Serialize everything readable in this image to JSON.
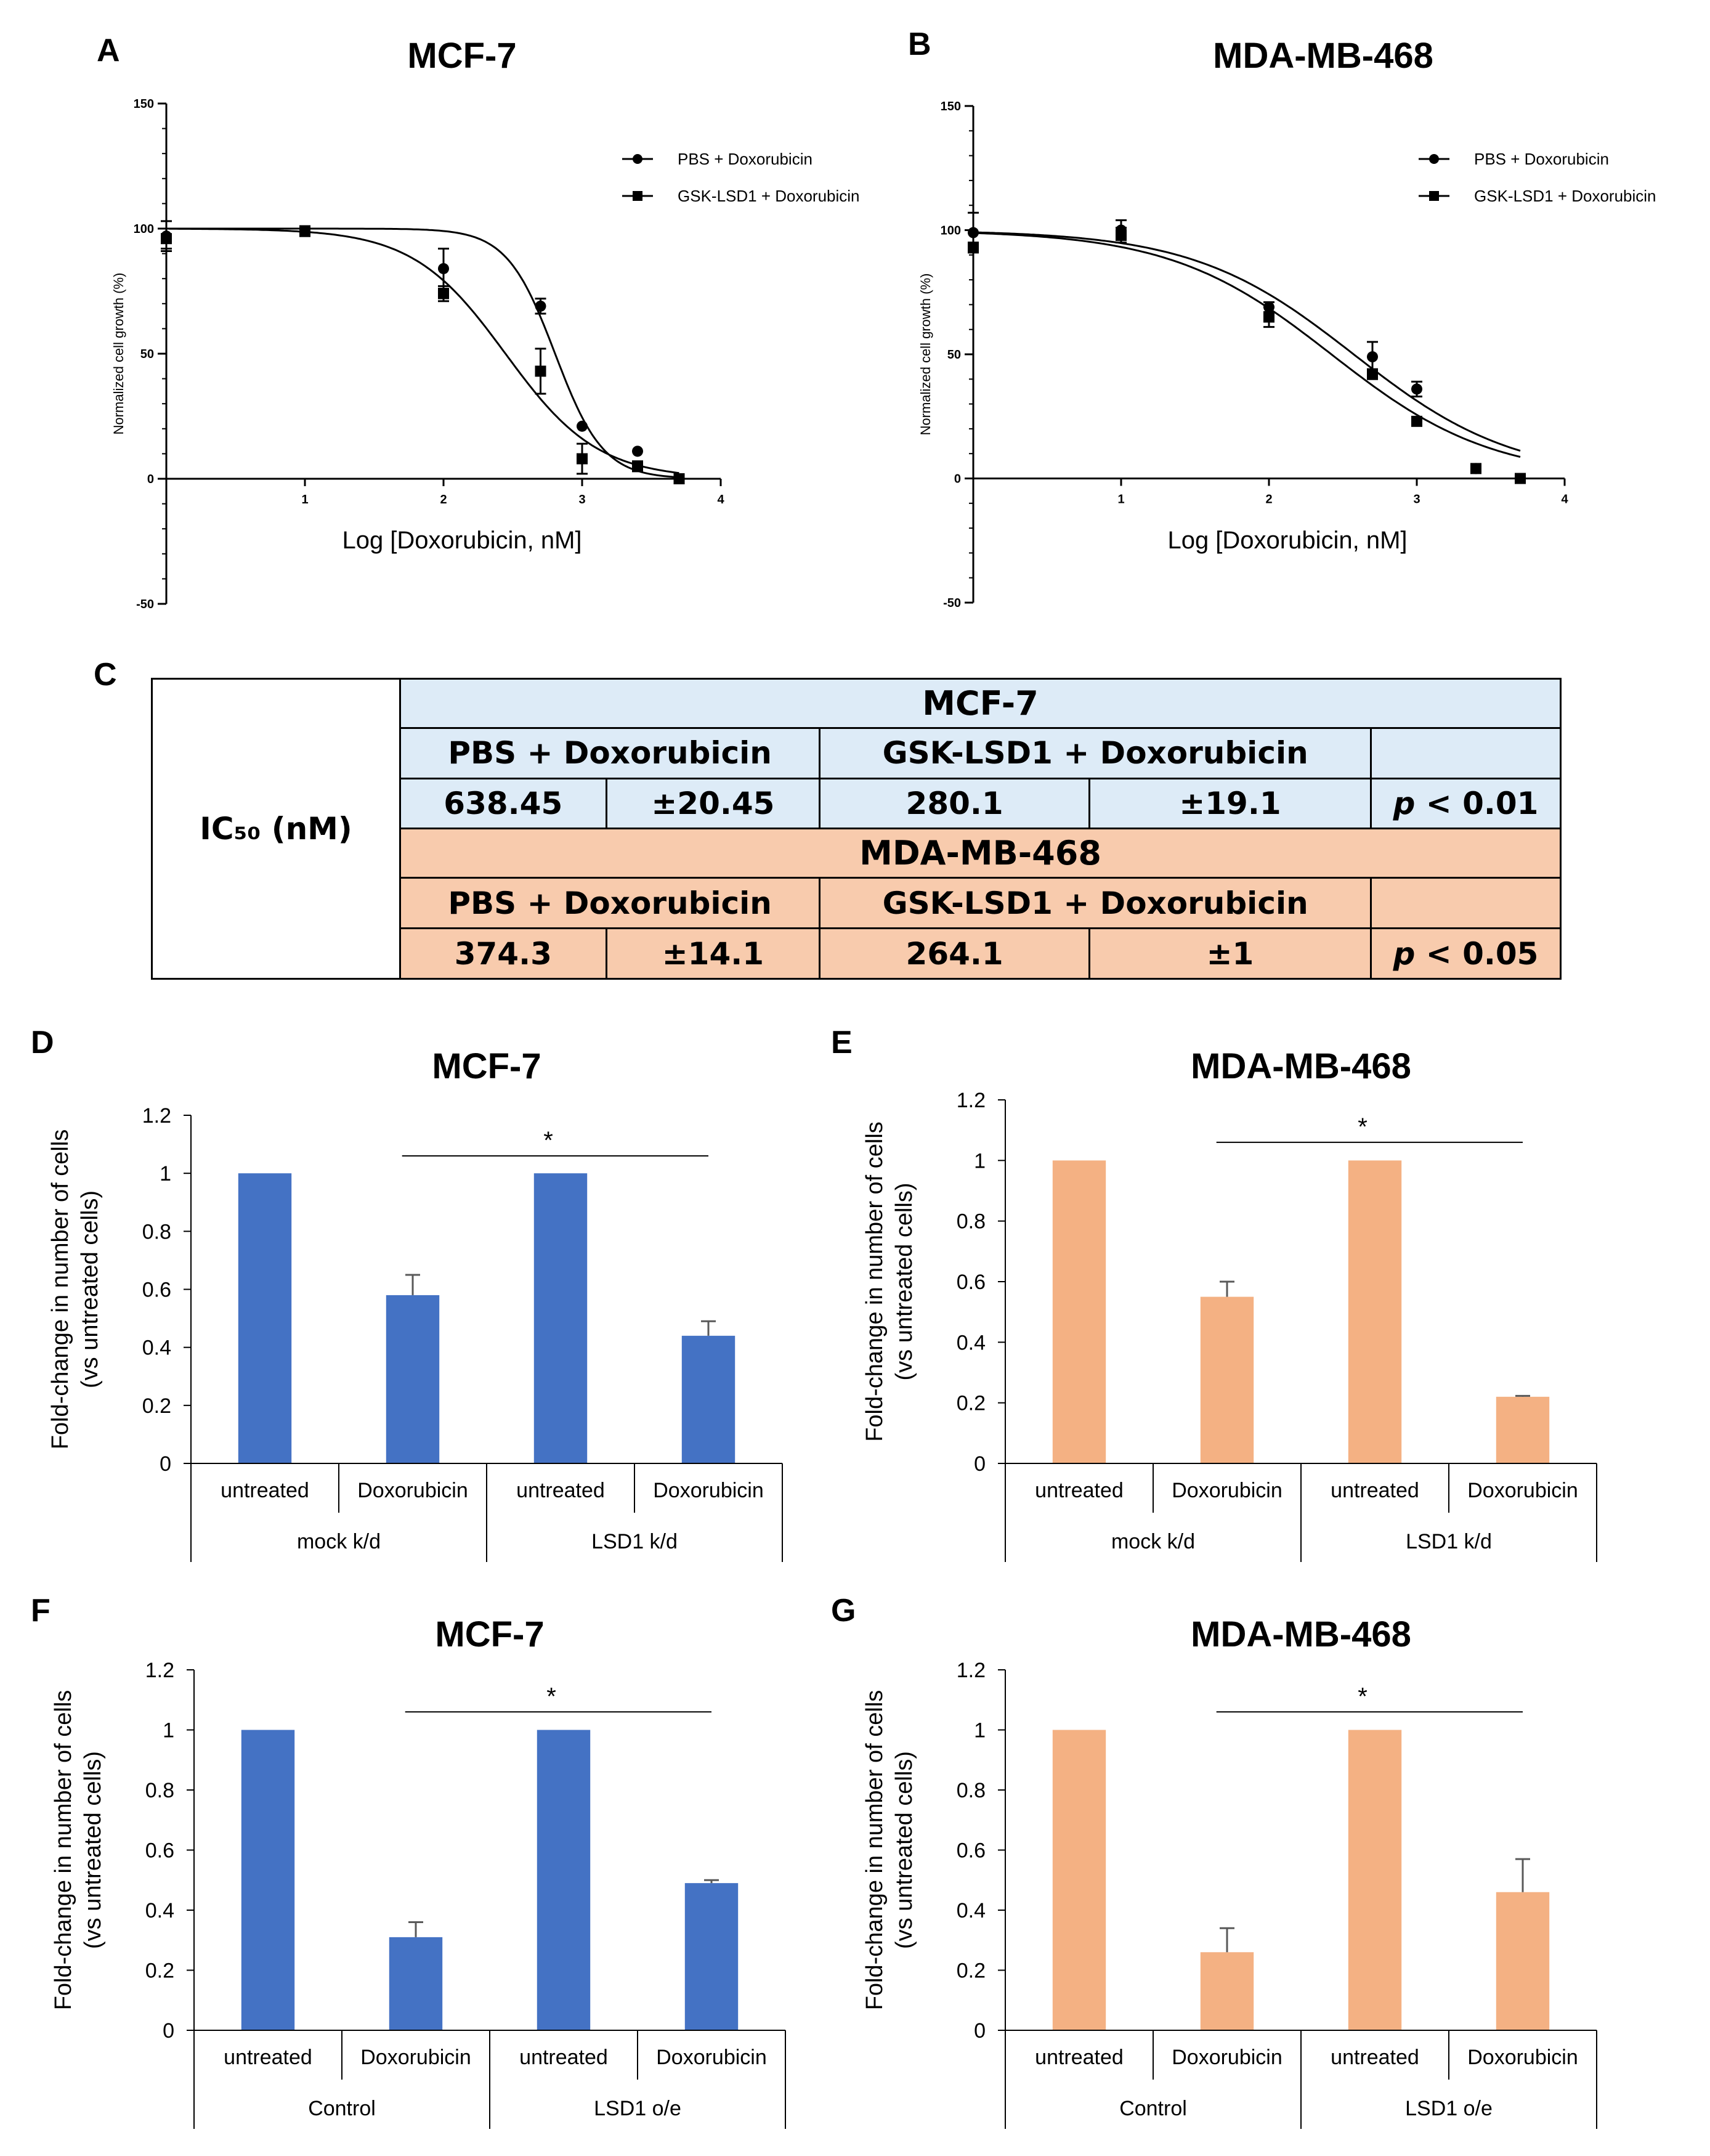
{
  "panels": {
    "A": "A",
    "B": "B",
    "C": "C",
    "D": "D",
    "E": "E",
    "F": "F",
    "G": "G"
  },
  "ic50_table": {
    "row_label": "IC₅₀ (nM)",
    "mcf7": {
      "title": "MCF-7",
      "pbs_label": "PBS + Doxorubicin",
      "gsk_label": "GSK-LSD1 + Doxorubicin",
      "pbs_value": "638.45",
      "pbs_sd": "±20.45",
      "gsk_value": "280.1",
      "gsk_sd": "±19.1",
      "p_prefix": "p",
      "p_rest": " < 0.01"
    },
    "mda": {
      "title": "MDA-MB-468",
      "pbs_label": "PBS + Doxorubicin",
      "gsk_label": "GSK-LSD1 + Doxorubicin",
      "pbs_value": "374.3",
      "pbs_sd": "±14.1",
      "gsk_value": "264.1",
      "gsk_sd": "±1",
      "p_prefix": "p",
      "p_rest": " < 0.05"
    }
  },
  "chart_data": [
    {
      "id": "A",
      "type": "scatter",
      "title": "MCF-7",
      "xlabel": "Log [Doxorubicin, nM]",
      "ylabel": "Normalized cell growth (%)",
      "xlim": [
        0,
        4
      ],
      "ylim": [
        -50,
        150
      ],
      "xticks": [
        1,
        2,
        3,
        4
      ],
      "yticks": [
        -50,
        0,
        50,
        100,
        150
      ],
      "series": [
        {
          "name": "PBS + Doxorubicin",
          "marker": "circle",
          "x": [
            0,
            1,
            2,
            2.7,
            3,
            3.4,
            3.7
          ],
          "y": [
            97,
            99,
            84,
            69,
            21,
            11,
            0
          ],
          "err": [
            6,
            2,
            8,
            3,
            1,
            1,
            1
          ],
          "fit": {
            "top": 100,
            "bottom": 0,
            "log_ic50": 2.805,
            "hill": 2.5
          }
        },
        {
          "name": "GSK-LSD1 + Doxorubicin",
          "marker": "square",
          "x": [
            0,
            1,
            2,
            2.7,
            3,
            3.4,
            3.7
          ],
          "y": [
            96,
            99,
            74,
            43,
            8,
            5,
            0
          ],
          "err": [
            4,
            2,
            3,
            9,
            6,
            2,
            1
          ],
          "fit": {
            "top": 100,
            "bottom": 0,
            "log_ic50": 2.447,
            "hill": 1.3
          }
        }
      ]
    },
    {
      "id": "B",
      "type": "scatter",
      "title": "MDA-MB-468",
      "xlabel": "Log [Doxorubicin, nM]",
      "ylabel": "Normalized cell growth (%)",
      "xlim": [
        0,
        4
      ],
      "ylim": [
        -50,
        150
      ],
      "xticks": [
        1,
        2,
        3,
        4
      ],
      "yticks": [
        -50,
        0,
        50,
        100,
        150
      ],
      "series": [
        {
          "name": "PBS + Doxorubicin",
          "marker": "circle",
          "x": [
            0,
            1,
            2,
            2.7,
            3,
            3.4,
            3.7
          ],
          "y": [
            99,
            100,
            69,
            49,
            36,
            4,
            0
          ],
          "err": [
            8,
            4,
            2,
            6,
            3,
            1,
            1
          ],
          "fit": {
            "top": 100,
            "bottom": 0,
            "log_ic50": 2.573,
            "hill": 0.8
          }
        },
        {
          "name": "GSK-LSD1 + Doxorubicin",
          "marker": "square",
          "x": [
            0,
            1,
            2,
            2.7,
            3,
            3.4,
            3.7
          ],
          "y": [
            93,
            98,
            65,
            42,
            23,
            4,
            0
          ],
          "err": [
            2,
            3,
            4,
            2,
            1,
            1,
            1
          ],
          "fit": {
            "top": 100,
            "bottom": 0,
            "log_ic50": 2.422,
            "hill": 0.8
          }
        }
      ]
    },
    {
      "id": "D",
      "type": "bar",
      "title": "MCF-7",
      "color": "#4472c4",
      "ylabel": "Fold-change in number of cells (vs untreated cells)",
      "ylim": [
        0,
        1.2
      ],
      "yticks": [
        0,
        0.2,
        0.4,
        0.6,
        0.8,
        1,
        1.2
      ],
      "categories": [
        "untreated",
        "Doxorubicin",
        "untreated",
        "Doxorubicin"
      ],
      "groups": [
        "mock k/d",
        "LSD1 k/d"
      ],
      "values": [
        1,
        0.58,
        1,
        0.44
      ],
      "errors": [
        0,
        0.07,
        0,
        0.05
      ],
      "significance": "*"
    },
    {
      "id": "E",
      "type": "bar",
      "title": "MDA-MB-468",
      "color": "#f4b183",
      "ylabel": "Fold-change in number of cells (vs untreated cells)",
      "ylim": [
        0,
        1.2
      ],
      "yticks": [
        0,
        0.2,
        0.4,
        0.6,
        0.8,
        1,
        1.2
      ],
      "categories": [
        "untreated",
        "Doxorubicin",
        "untreated",
        "Doxorubicin"
      ],
      "groups": [
        "mock k/d",
        "LSD1 k/d"
      ],
      "values": [
        1,
        0.55,
        1,
        0.22
      ],
      "errors": [
        0,
        0.05,
        0,
        0.003
      ],
      "significance": "*"
    },
    {
      "id": "F",
      "type": "bar",
      "title": "MCF-7",
      "color": "#4472c4",
      "ylabel": "Fold-change in number of cells (vs untreated cells)",
      "ylim": [
        0,
        1.2
      ],
      "yticks": [
        0,
        0.2,
        0.4,
        0.6,
        0.8,
        1,
        1.2
      ],
      "categories": [
        "untreated",
        "Doxorubicin",
        "untreated",
        "Doxorubicin"
      ],
      "groups": [
        "Control",
        "LSD1 o/e"
      ],
      "values": [
        1,
        0.31,
        1,
        0.49
      ],
      "errors": [
        0,
        0.05,
        0,
        0.01
      ],
      "significance": "*"
    },
    {
      "id": "G",
      "type": "bar",
      "title": "MDA-MB-468",
      "color": "#f4b183",
      "ylabel": "Fold-change in number of cells (vs untreated cells)",
      "ylim": [
        0,
        1.2
      ],
      "yticks": [
        0,
        0.2,
        0.4,
        0.6,
        0.8,
        1,
        1.2
      ],
      "categories": [
        "untreated",
        "Doxorubicin",
        "untreated",
        "Doxorubicin"
      ],
      "groups": [
        "Control",
        "LSD1 o/e"
      ],
      "values": [
        1,
        0.26,
        1,
        0.46
      ],
      "errors": [
        0,
        0.08,
        0,
        0.11
      ],
      "significance": "*"
    }
  ]
}
